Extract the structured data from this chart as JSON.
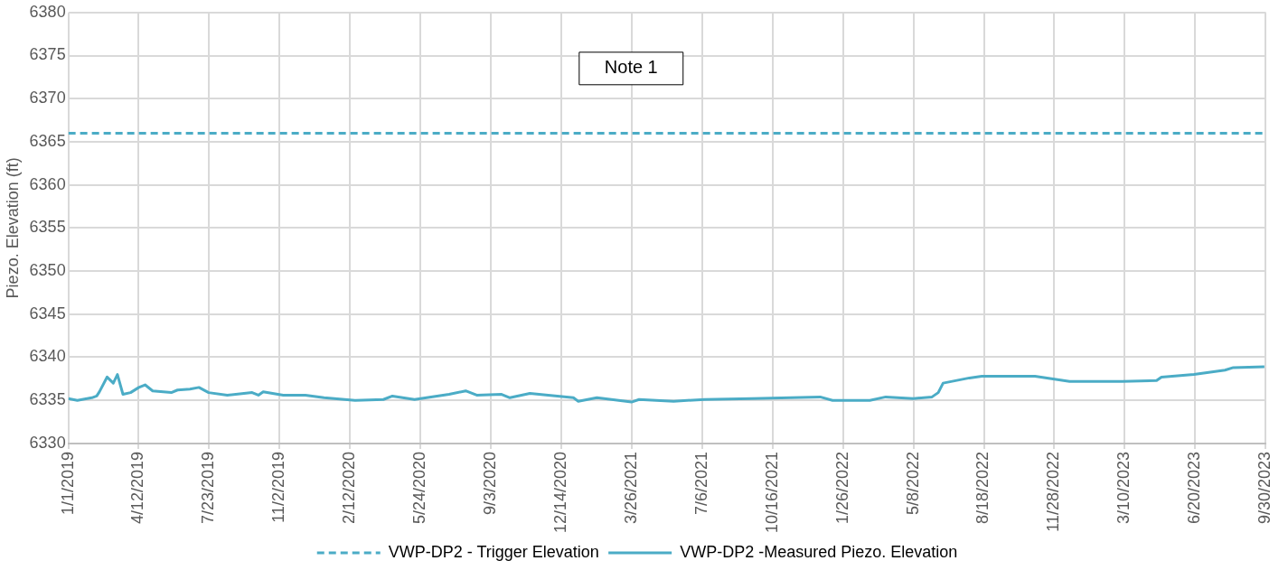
{
  "chart_data": {
    "type": "line",
    "ylabel": "Piezo. Elevation (ft)",
    "ylim": [
      6330,
      6380
    ],
    "yticks": [
      6330,
      6335,
      6340,
      6345,
      6350,
      6355,
      6360,
      6365,
      6370,
      6375,
      6380
    ],
    "xlim": [
      "2019-01-01",
      "2023-09-30"
    ],
    "xticks": [
      {
        "value": "2019-01-01",
        "label": "1/1/2019"
      },
      {
        "value": "2019-04-12",
        "label": "4/12/2019"
      },
      {
        "value": "2019-07-23",
        "label": "7/23/2019"
      },
      {
        "value": "2019-11-02",
        "label": "11/2/2019"
      },
      {
        "value": "2020-02-12",
        "label": "2/12/2020"
      },
      {
        "value": "2020-05-24",
        "label": "5/24/2020"
      },
      {
        "value": "2020-09-03",
        "label": "9/3/2020"
      },
      {
        "value": "2020-12-14",
        "label": "12/14/2020"
      },
      {
        "value": "2021-03-26",
        "label": "3/26/2021"
      },
      {
        "value": "2021-07-06",
        "label": "7/6/2021"
      },
      {
        "value": "2021-10-16",
        "label": "10/16/2021"
      },
      {
        "value": "2022-01-26",
        "label": "1/26/2022"
      },
      {
        "value": "2022-05-08",
        "label": "5/8/2022"
      },
      {
        "value": "2022-08-18",
        "label": "8/18/2022"
      },
      {
        "value": "2022-11-28",
        "label": "11/28/2022"
      },
      {
        "value": "2023-03-10",
        "label": "3/10/2023"
      },
      {
        "value": "2023-06-20",
        "label": "6/20/2023"
      },
      {
        "value": "2023-09-30",
        "label": "9/30/2023"
      }
    ],
    "grid": true,
    "legend": "bottom",
    "marker": "none",
    "annotations": [
      "Note 1"
    ],
    "series": [
      {
        "name": "VWP-DP2 - Trigger Elevation",
        "color": "#4bacc6",
        "line_style": "dashed",
        "x": [
          "2019-01-01",
          "2023-09-30"
        ],
        "values": [
          6366,
          6366
        ]
      },
      {
        "name": "VWP-DP2 -Measured Piezo. Elevation",
        "color": "#4bacc6",
        "line_style": "solid",
        "x": [
          "2019-01-01",
          "2019-01-14",
          "2019-02-04",
          "2019-02-11",
          "2019-02-15",
          "2019-02-26",
          "2019-03-07",
          "2019-03-13",
          "2019-03-21",
          "2019-04-01",
          "2019-04-13",
          "2019-04-22",
          "2019-05-03",
          "2019-05-30",
          "2019-06-08",
          "2019-06-26",
          "2019-07-09",
          "2019-07-23",
          "2019-08-19",
          "2019-09-24",
          "2019-10-03",
          "2019-10-10",
          "2019-11-08",
          "2019-12-10",
          "2020-01-06",
          "2020-02-20",
          "2020-04-01",
          "2020-04-14",
          "2020-05-16",
          "2020-07-05",
          "2020-07-29",
          "2020-08-14",
          "2020-09-19",
          "2020-10-01",
          "2020-10-30",
          "2021-01-01",
          "2021-01-08",
          "2021-02-04",
          "2021-03-26",
          "2021-04-06",
          "2021-05-26",
          "2021-07-10",
          "2021-09-16",
          "2021-12-24",
          "2022-01-11",
          "2022-03-06",
          "2022-03-29",
          "2022-05-08",
          "2022-06-04",
          "2022-06-13",
          "2022-06-20",
          "2022-07-28",
          "2022-08-15",
          "2022-10-31",
          "2022-12-20",
          "2023-03-06",
          "2023-04-25",
          "2023-05-02",
          "2023-06-18",
          "2023-08-02",
          "2023-08-14",
          "2023-09-28"
        ],
        "values": [
          6335.2,
          6335.0,
          6335.3,
          6335.5,
          6336.0,
          6337.7,
          6337.0,
          6338.0,
          6335.7,
          6335.9,
          6336.5,
          6336.8,
          6336.1,
          6335.9,
          6336.2,
          6336.3,
          6336.5,
          6335.9,
          6335.6,
          6335.9,
          6335.6,
          6336.0,
          6335.6,
          6335.6,
          6335.3,
          6335.0,
          6335.1,
          6335.5,
          6335.1,
          6335.7,
          6336.1,
          6335.6,
          6335.7,
          6335.3,
          6335.8,
          6335.3,
          6334.9,
          6335.3,
          6334.8,
          6335.1,
          6334.9,
          6335.1,
          6335.2,
          6335.4,
          6335.0,
          6335.0,
          6335.4,
          6335.2,
          6335.4,
          6335.9,
          6337.0,
          6337.6,
          6337.8,
          6337.8,
          6337.2,
          6337.2,
          6337.3,
          6337.7,
          6338.0,
          6338.5,
          6338.8,
          6338.9
        ]
      }
    ]
  }
}
